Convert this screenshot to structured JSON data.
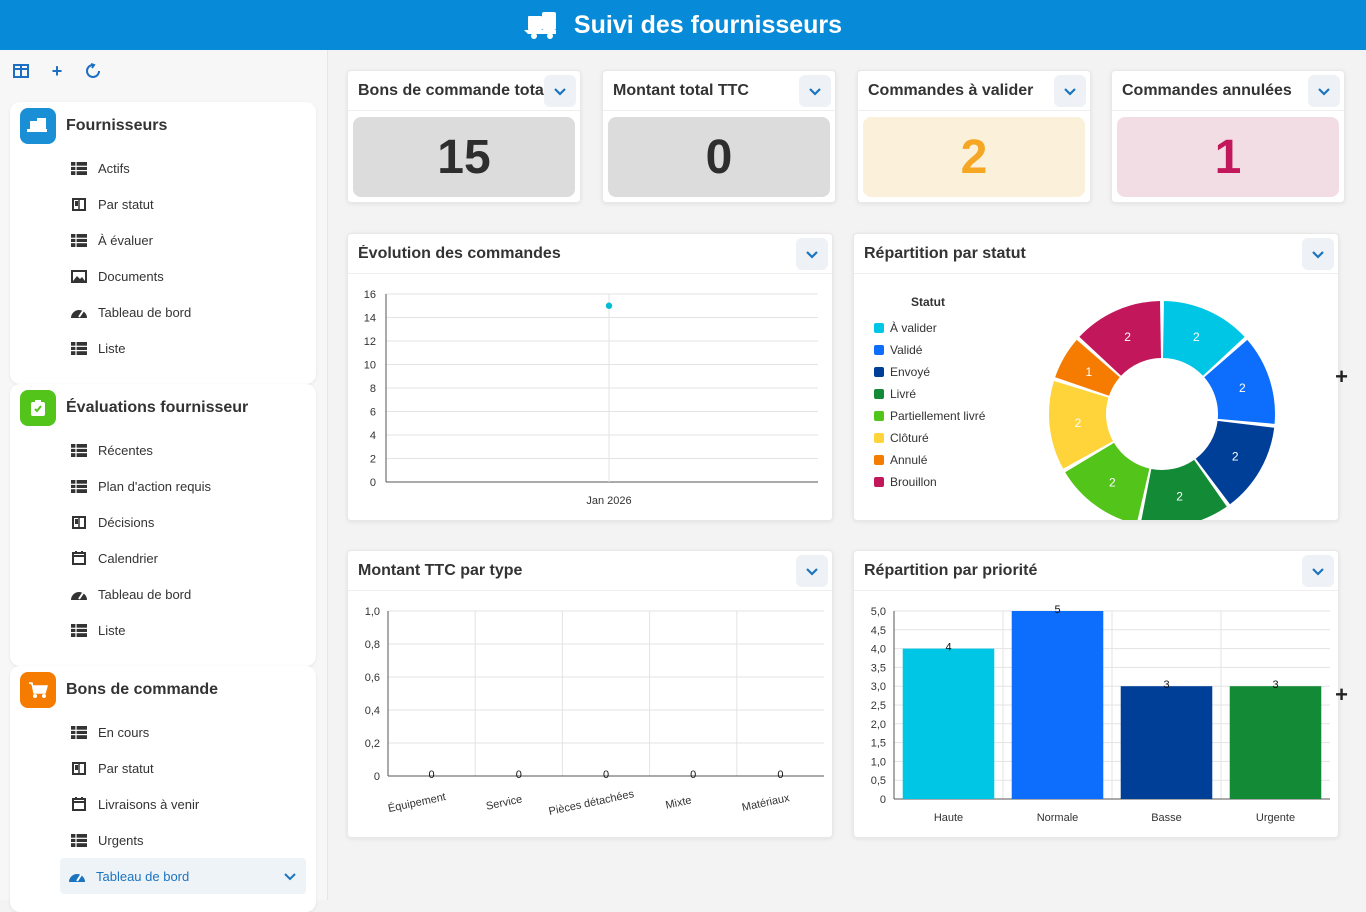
{
  "header": {
    "title": "Suivi des fournisseurs"
  },
  "sidebar": {
    "groups": [
      {
        "title": "Fournisseurs",
        "color": "#1a8fd6",
        "items": [
          {
            "label": "Actifs",
            "icon": "table"
          },
          {
            "label": "Par statut",
            "icon": "kanban"
          },
          {
            "label": "À évaluer",
            "icon": "table"
          },
          {
            "label": "Documents",
            "icon": "image"
          },
          {
            "label": "Tableau de bord",
            "icon": "gauge"
          },
          {
            "label": "Liste",
            "icon": "table"
          }
        ]
      },
      {
        "title": "Évaluations fournisseur",
        "color": "#52c41a",
        "items": [
          {
            "label": "Récentes",
            "icon": "table"
          },
          {
            "label": "Plan d'action requis",
            "icon": "table"
          },
          {
            "label": "Décisions",
            "icon": "kanban"
          },
          {
            "label": "Calendrier",
            "icon": "calendar"
          },
          {
            "label": "Tableau de bord",
            "icon": "gauge"
          },
          {
            "label": "Liste",
            "icon": "table"
          }
        ]
      },
      {
        "title": "Bons de commande",
        "color": "#f57c00",
        "items": [
          {
            "label": "En cours",
            "icon": "table"
          },
          {
            "label": "Par statut",
            "icon": "kanban"
          },
          {
            "label": "Livraisons à venir",
            "icon": "calendar"
          },
          {
            "label": "Urgents",
            "icon": "table"
          },
          {
            "label": "Tableau de bord",
            "icon": "gauge",
            "active": true
          }
        ]
      }
    ]
  },
  "kpis": [
    {
      "title": "Bons de commande totaux",
      "value": "15",
      "bg": "#dcdcdc",
      "fg": "#2e2e2e"
    },
    {
      "title": "Montant total TTC",
      "value": "0",
      "bg": "#dcdcdc",
      "fg": "#2e2e2e"
    },
    {
      "title": "Commandes à valider",
      "value": "2",
      "bg": "#fbf0d9",
      "fg": "#f5a623"
    },
    {
      "title": "Commandes annulées",
      "value": "1",
      "bg": "#f3dde4",
      "fg": "#c2185b"
    }
  ],
  "cards": {
    "evolution": {
      "title": "Évolution des commandes"
    },
    "statut": {
      "title": "Répartition par statut"
    },
    "montant": {
      "title": "Montant TTC par type"
    },
    "priorite": {
      "title": "Répartition par priorité"
    }
  },
  "chart_data": [
    {
      "type": "line",
      "title": "Évolution des commandes",
      "x": [
        "Jan 2026"
      ],
      "series": [
        {
          "values": [
            15
          ],
          "color": "#00bcd4"
        }
      ],
      "ylim": [
        0,
        16
      ],
      "yticks": [
        0,
        2,
        4,
        6,
        8,
        10,
        12,
        14,
        16
      ],
      "grid": true
    },
    {
      "type": "pie",
      "title": "Répartition par statut",
      "legend_title": "Statut",
      "legend_position": "left",
      "slices": [
        {
          "label": "À valider",
          "value": 2,
          "color": "#00c6e6"
        },
        {
          "label": "Validé",
          "value": 2,
          "color": "#0d6efd"
        },
        {
          "label": "Envoyé",
          "value": 2,
          "color": "#003f98"
        },
        {
          "label": "Livré",
          "value": 2,
          "color": "#138a36"
        },
        {
          "label": "Partiellement livré",
          "value": 2,
          "color": "#52c41a"
        },
        {
          "label": "Clôturé",
          "value": 2,
          "color": "#ffd43b"
        },
        {
          "label": "Annulé",
          "value": 1,
          "color": "#f57c00"
        },
        {
          "label": "Brouillon",
          "value": 2,
          "color": "#c2185b"
        }
      ]
    },
    {
      "type": "bar",
      "title": "Montant TTC par type",
      "categories": [
        "Équipement",
        "Service",
        "Pièces détachées",
        "Mixte",
        "Matériaux"
      ],
      "values": [
        0,
        0,
        0,
        0,
        0
      ],
      "ylim": [
        0,
        1
      ],
      "yticks": [
        "0",
        "0,2",
        "0,4",
        "0,6",
        "0,8",
        "1,0"
      ],
      "grid": true
    },
    {
      "type": "bar",
      "title": "Répartition par priorité",
      "categories": [
        "Haute",
        "Normale",
        "Basse",
        "Urgente"
      ],
      "values": [
        4,
        5,
        3,
        3
      ],
      "colors": [
        "#00c6e6",
        "#0d6efd",
        "#003f98",
        "#138a36"
      ],
      "ylim": [
        0,
        5
      ],
      "yticks": [
        "0",
        "0,5",
        "1,0",
        "1,5",
        "2,0",
        "2,5",
        "3,0",
        "3,5",
        "4,0",
        "4,5",
        "5,0"
      ],
      "grid": true
    }
  ]
}
